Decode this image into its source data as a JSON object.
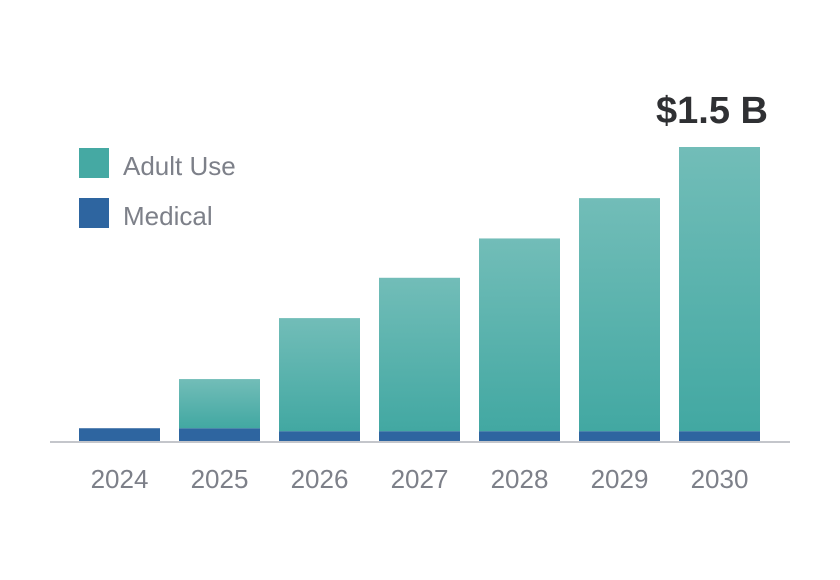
{
  "chart_data": {
    "type": "bar",
    "stacked": true,
    "title": "",
    "xlabel": "",
    "ylabel": "",
    "unit": "USD billions",
    "ylim": [
      0,
      1.5
    ],
    "grid": false,
    "legend_position": "top-left",
    "categories": [
      "2024",
      "2025",
      "2026",
      "2027",
      "2028",
      "2029",
      "2030"
    ],
    "series": [
      {
        "name": "Medical",
        "color": "#2e65a0",
        "values": [
          0.07,
          0.07,
          0.055,
          0.055,
          0.055,
          0.055,
          0.055
        ]
      },
      {
        "name": "Adult Use",
        "color": "#45a9a3",
        "values": [
          0.0,
          0.25,
          0.575,
          0.78,
          0.98,
          1.185,
          1.445
        ]
      }
    ],
    "annotations": [
      {
        "category": "2030",
        "text": "$1.5 B"
      }
    ]
  }
}
